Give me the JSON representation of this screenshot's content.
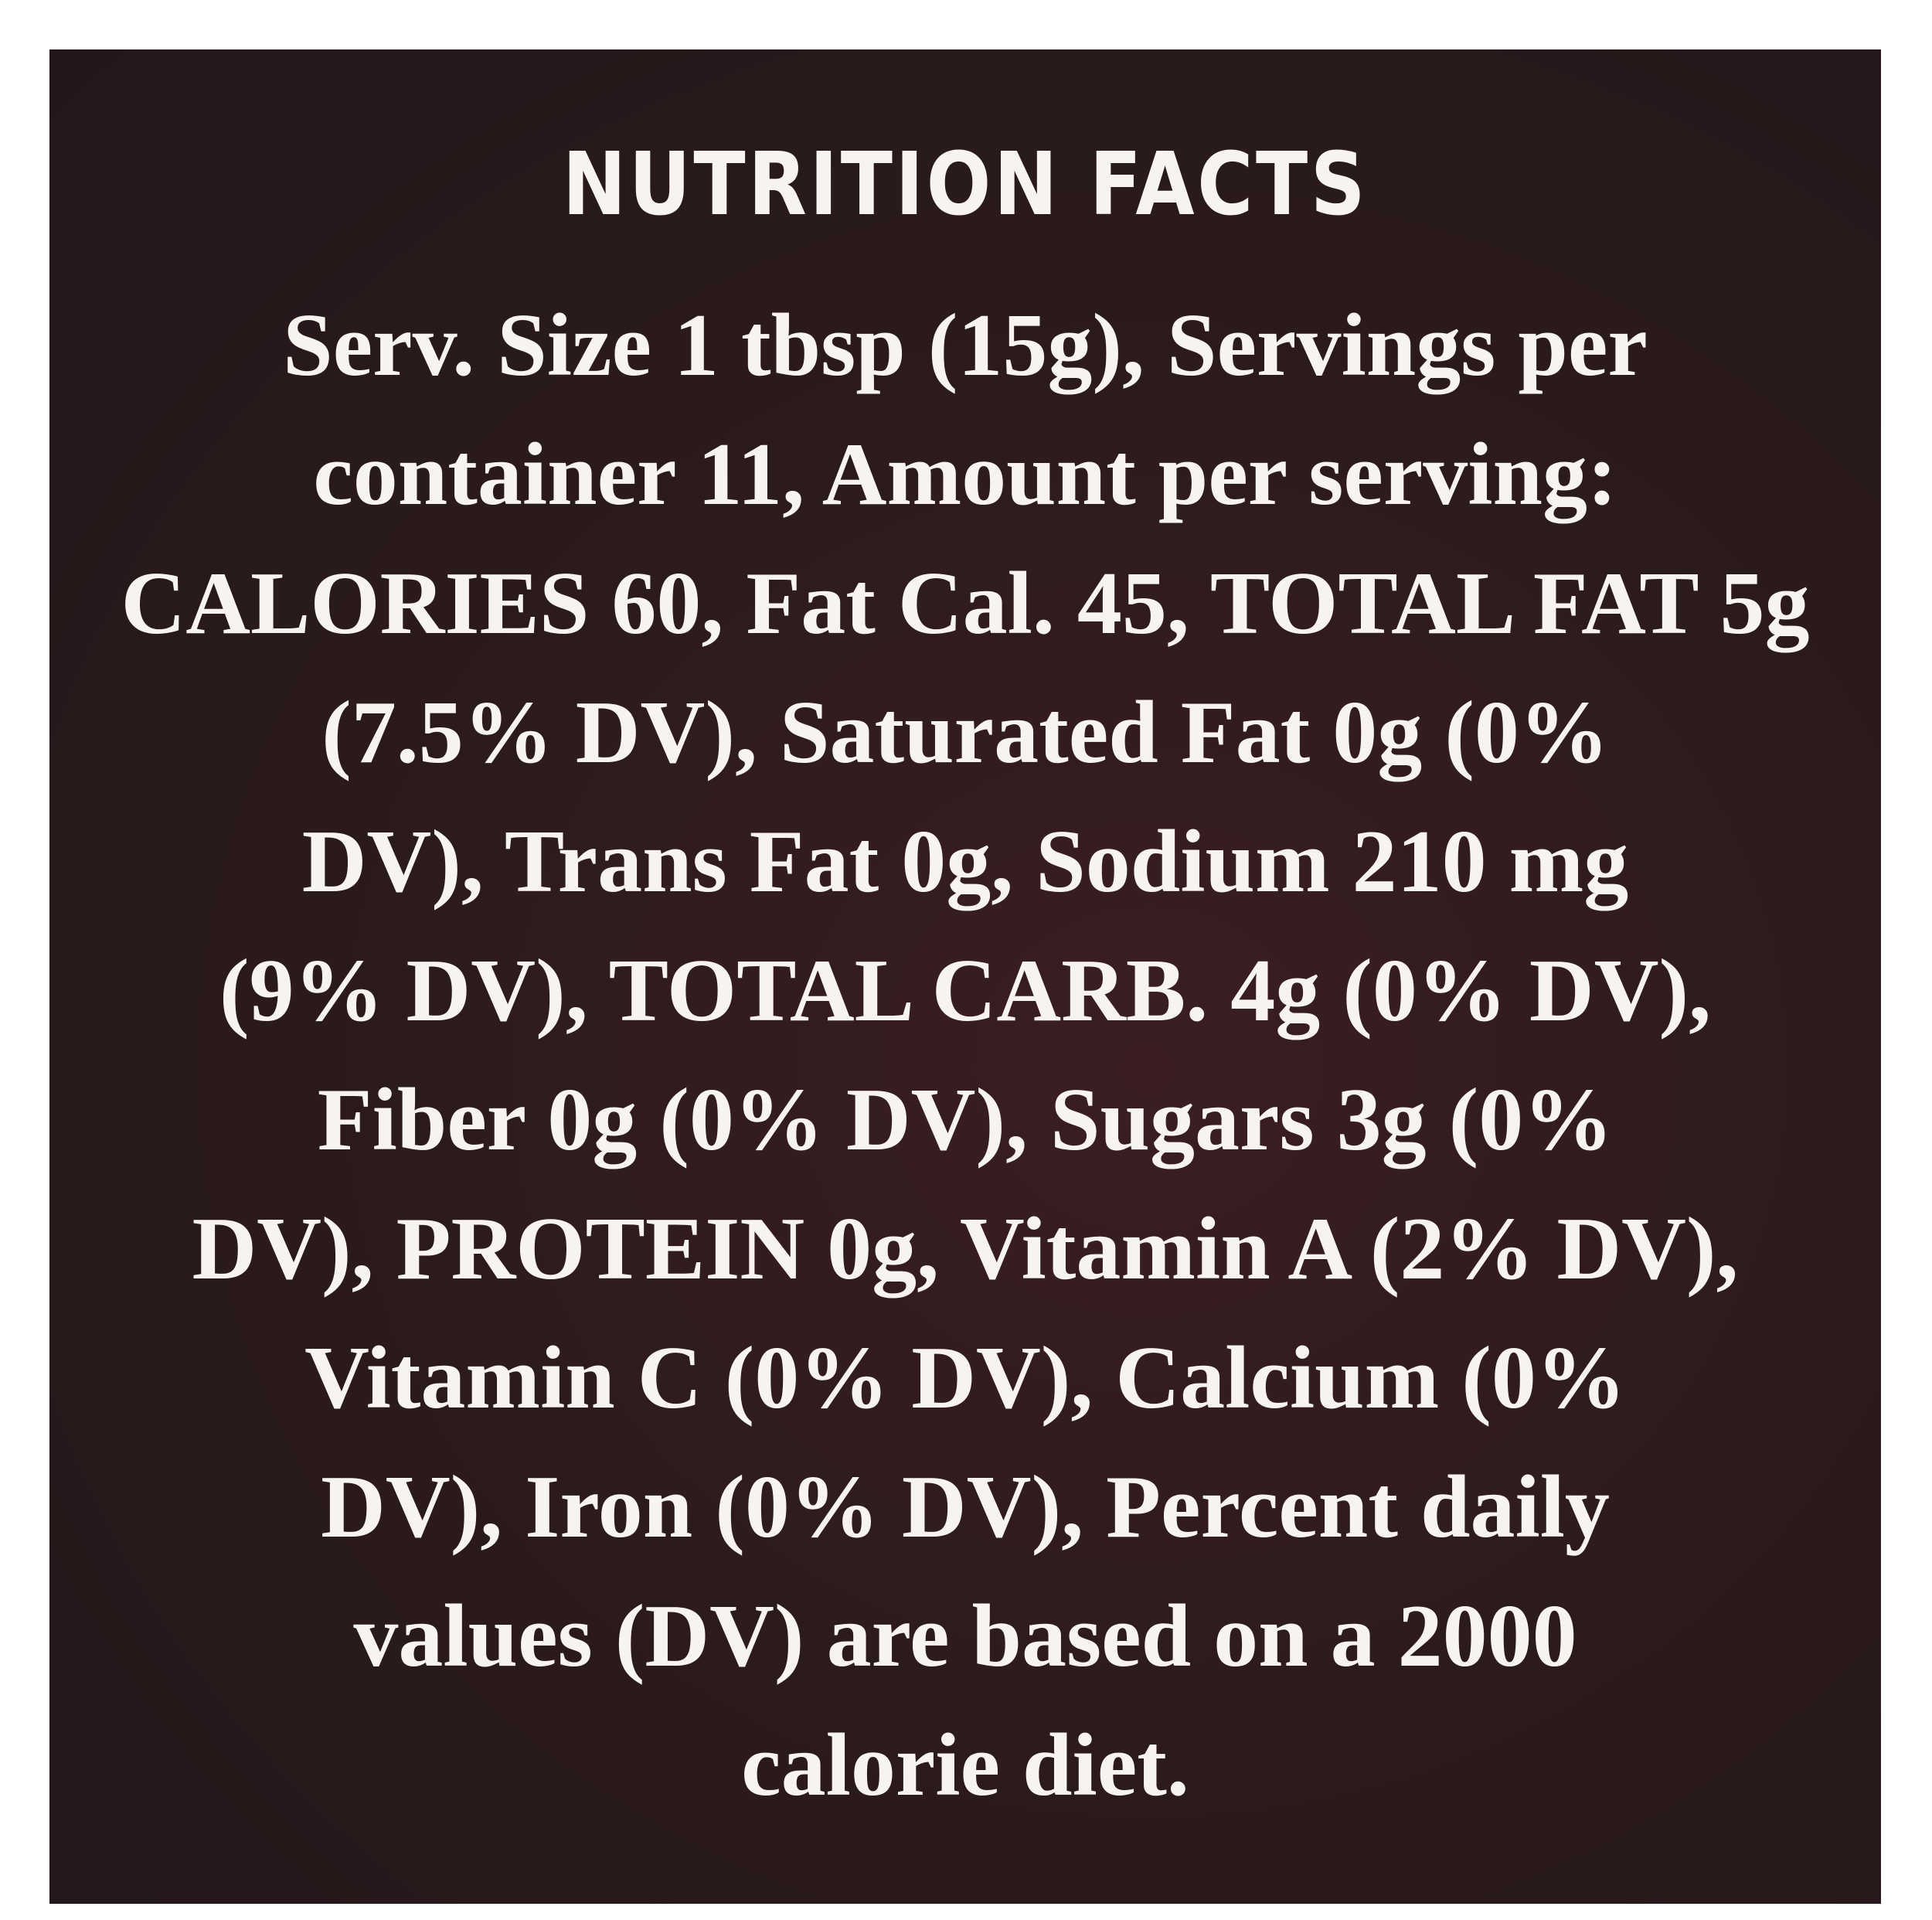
{
  "label": {
    "title": "NUTRITION FACTS",
    "lines": [
      "Serv. Size 1 tbsp (15g), Servings per",
      "container 11, Amount per serving:",
      "CALORIES 60, Fat Cal. 45, TOTAL FAT 5g",
      "(7.5% DV), Saturated Fat 0g (0%",
      "DV), Trans Fat 0g, Sodium 210 mg",
      "(9% DV), TOTAL CARB. 4g (0% DV),",
      "Fiber 0g (0% DV), Sugars 3g (0%",
      "DV), PROTEIN 0g, Vitamin A (2% DV),",
      "Vitamin C (0% DV), Calcium (0%",
      "DV), Iron (0% DV), Percent daily",
      "values (DV) are based on a 2000",
      "calorie diet."
    ]
  }
}
